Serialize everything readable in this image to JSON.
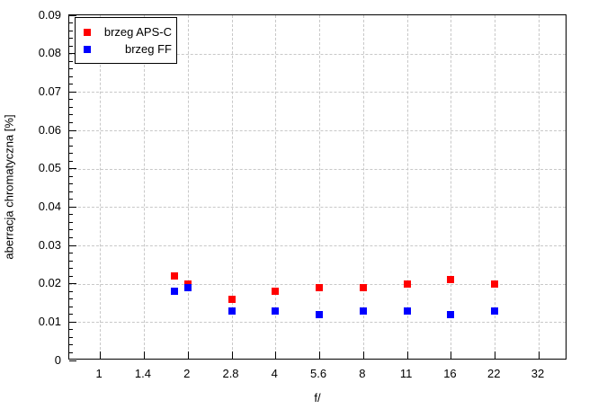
{
  "chart_data": {
    "type": "scatter",
    "title": "",
    "xlabel": "f/",
    "ylabel": "aberracja chromatyczna [%]",
    "x_scale": "log-fstop",
    "grid": true,
    "legend_position": "top-left",
    "ylim": [
      0,
      0.09
    ],
    "ytick_step": 0.01,
    "ytick_minor_step": 0.002,
    "yticks": [
      {
        "v": 0.0,
        "label": "0"
      },
      {
        "v": 0.01,
        "label": "0.01"
      },
      {
        "v": 0.02,
        "label": "0.02"
      },
      {
        "v": 0.03,
        "label": "0.03"
      },
      {
        "v": 0.04,
        "label": "0.04"
      },
      {
        "v": 0.05,
        "label": "0.05"
      },
      {
        "v": 0.06,
        "label": "0.06"
      },
      {
        "v": 0.07,
        "label": "0.07"
      },
      {
        "v": 0.08,
        "label": "0.08"
      },
      {
        "v": 0.09,
        "label": "0.09"
      }
    ],
    "xticks": [
      {
        "f": 1,
        "label": "1"
      },
      {
        "f": 1.4,
        "label": "1.4"
      },
      {
        "f": 2,
        "label": "2"
      },
      {
        "f": 2.8,
        "label": "2.8"
      },
      {
        "f": 4,
        "label": "4"
      },
      {
        "f": 5.6,
        "label": "5.6"
      },
      {
        "f": 8,
        "label": "8"
      },
      {
        "f": 11,
        "label": "11"
      },
      {
        "f": 16,
        "label": "16"
      },
      {
        "f": 22,
        "label": "22"
      },
      {
        "f": 32,
        "label": "32"
      }
    ],
    "colors": {
      "aps_c": "#ff0000",
      "ff": "#0000ff",
      "grid": "#c8c8c8",
      "axis": "#000000"
    },
    "series": [
      {
        "name": "brzeg APS-C",
        "color": "#ff0000",
        "marker": "square",
        "points": [
          [
            1.8,
            0.022
          ],
          [
            2,
            0.02
          ],
          [
            2.8,
            0.016
          ],
          [
            4,
            0.018
          ],
          [
            5.6,
            0.019
          ],
          [
            8,
            0.019
          ],
          [
            11,
            0.02
          ],
          [
            16,
            0.021
          ],
          [
            22,
            0.02
          ]
        ]
      },
      {
        "name": "brzeg FF",
        "color": "#0000ff",
        "marker": "square",
        "points": [
          [
            1.8,
            0.018
          ],
          [
            2,
            0.019
          ],
          [
            2.8,
            0.013
          ],
          [
            4,
            0.013
          ],
          [
            5.6,
            0.012
          ],
          [
            8,
            0.013
          ],
          [
            11,
            0.013
          ],
          [
            16,
            0.012
          ],
          [
            22,
            0.013
          ]
        ]
      }
    ]
  }
}
